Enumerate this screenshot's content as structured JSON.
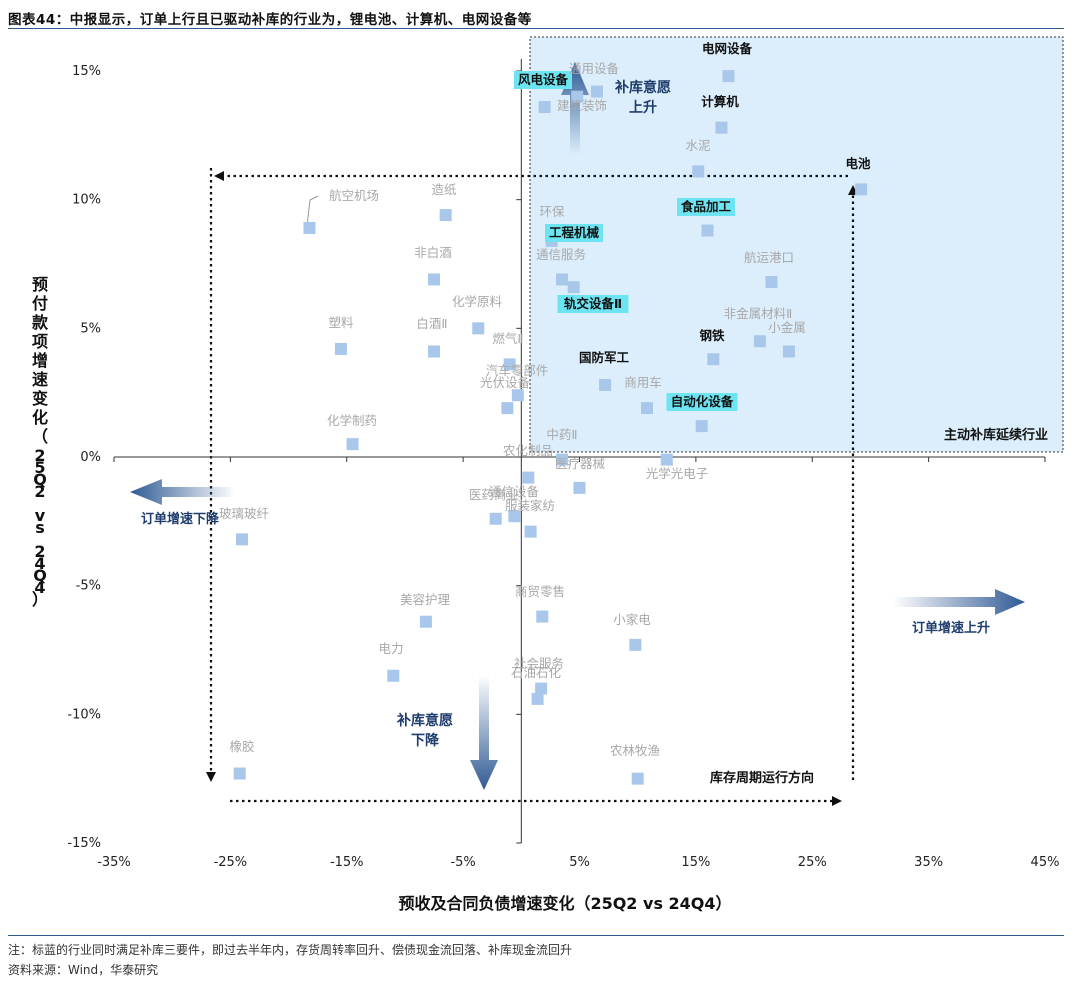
{
  "title": "图表44：中报显示，订单上行且已驱动补库的行业为，锂电池、计算机、电网设备等",
  "note": "注：标蓝的行业同时满足补库三要件，即过去半年内，存货周转率回升、偿债现金流回落、补库现金流回升",
  "source": "资料来源：Wind，华泰研究",
  "chart_data": {
    "type": "scatter",
    "xlabel": "预收及合同负债增速变化（25Q2 vs 24Q4）",
    "ylabel": "预付款项增速变化（25Q2 vs 24Q4）",
    "xlim": [
      -35,
      45
    ],
    "ylim": [
      -15,
      15
    ],
    "xticks": [
      -35,
      -25,
      -15,
      -5,
      5,
      15,
      25,
      35,
      45
    ],
    "yticks": [
      -15,
      -10,
      -5,
      0,
      5,
      10,
      15
    ],
    "xtick_labels": [
      "-35%",
      "-25%",
      "-15%",
      "-5%",
      "5%",
      "15%",
      "25%",
      "35%",
      "45%"
    ],
    "ytick_labels": [
      "-15%",
      "-10%",
      "-5%",
      "0%",
      "5%",
      "10%",
      "15%"
    ],
    "marker_color": "#a9c7ea",
    "highlight_color": "#6de4f2",
    "region_color": "#dceefb",
    "region_label": "主动补库延续行业",
    "annotations": {
      "restock_up": "补库意愿\n上升",
      "restock_down": "补库意愿\n下降",
      "order_down": "订单增速下降",
      "order_up": "订单增速上升",
      "cycle": "库存周期运行方向"
    },
    "points": [
      {
        "label": "电网设备",
        "x": 17.8,
        "y": 14.8,
        "style": "bold"
      },
      {
        "label": "计算机",
        "x": 17.2,
        "y": 12.8,
        "style": "bold"
      },
      {
        "label": "电池",
        "x": 29.2,
        "y": 10.4,
        "style": "bold"
      },
      {
        "label": "食品加工",
        "x": 16.0,
        "y": 8.8,
        "style": "highlight"
      },
      {
        "label": "工程机械",
        "x": 2.8,
        "y": 8.6,
        "style": "highlight"
      },
      {
        "label": "轨交设备Ⅱ",
        "x": 4.5,
        "y": 6.6,
        "style": "highlight"
      },
      {
        "label": "风电设备",
        "x": 4.8,
        "y": 14.0,
        "style": "highlight"
      },
      {
        "label": "自动化设备",
        "x": 15.5,
        "y": 1.2,
        "style": "highlight"
      },
      {
        "label": "钢铁",
        "x": 16.5,
        "y": 3.8,
        "style": "bold"
      },
      {
        "label": "国防军工",
        "x": 7.2,
        "y": 2.8,
        "style": "bold"
      },
      {
        "label": "通用设备",
        "x": 6.5,
        "y": 14.2,
        "style": "gray"
      },
      {
        "label": "建筑装饰",
        "x": 2.0,
        "y": 13.6,
        "style": "gray"
      },
      {
        "label": "水泥",
        "x": 15.2,
        "y": 11.1,
        "style": "gray"
      },
      {
        "label": "航运港口",
        "x": 21.5,
        "y": 6.8,
        "style": "gray"
      },
      {
        "label": "非金属材料Ⅱ",
        "x": 20.5,
        "y": 4.5,
        "style": "gray"
      },
      {
        "label": "小金属",
        "x": 23.0,
        "y": 4.1,
        "style": "gray"
      },
      {
        "label": "商用车",
        "x": 10.8,
        "y": 1.9,
        "style": "gray"
      },
      {
        "label": "通信服务",
        "x": 3.5,
        "y": 6.9,
        "style": "gray"
      },
      {
        "label": "环保",
        "x": 2.6,
        "y": 8.4,
        "style": "gray"
      },
      {
        "label": "中药Ⅱ",
        "x": 3.5,
        "y": -0.1,
        "style": "gray"
      },
      {
        "label": "光学光电子",
        "x": 12.5,
        "y": -0.1,
        "style": "gray"
      },
      {
        "label": "医疗器械",
        "x": 5.0,
        "y": -1.2,
        "style": "gray"
      },
      {
        "label": "航空机场",
        "x": -18.2,
        "y": 8.9,
        "style": "gray"
      },
      {
        "label": "造纸",
        "x": -6.5,
        "y": 9.4,
        "style": "gray"
      },
      {
        "label": "非白酒",
        "x": -7.5,
        "y": 6.9,
        "style": "gray"
      },
      {
        "label": "化学原料",
        "x": -3.7,
        "y": 5.0,
        "style": "gray"
      },
      {
        "label": "塑料",
        "x": -15.5,
        "y": 4.2,
        "style": "gray"
      },
      {
        "label": "白酒Ⅱ",
        "x": -7.5,
        "y": 4.1,
        "style": "gray"
      },
      {
        "label": "燃气Ⅱ",
        "x": -1.0,
        "y": 3.6,
        "style": "gray"
      },
      {
        "label": "汽车零部件",
        "x": -0.3,
        "y": 2.4,
        "style": "gray"
      },
      {
        "label": "光伏设备",
        "x": -1.2,
        "y": 1.9,
        "style": "gray"
      },
      {
        "label": "化学制药",
        "x": -14.5,
        "y": 0.5,
        "style": "gray"
      },
      {
        "label": "农化制品",
        "x": 0.6,
        "y": -0.8,
        "style": "gray"
      },
      {
        "label": "通信设备",
        "x": -0.6,
        "y": -2.3,
        "style": "gray"
      },
      {
        "label": "医药商业",
        "x": -2.2,
        "y": -2.4,
        "style": "gray"
      },
      {
        "label": "服装家纺",
        "x": 0.8,
        "y": -2.9,
        "style": "gray"
      },
      {
        "label": "玻璃玻纤",
        "x": -24.0,
        "y": -3.2,
        "style": "gray"
      },
      {
        "label": "美容护理",
        "x": -8.2,
        "y": -6.4,
        "style": "gray"
      },
      {
        "label": "商贸零售",
        "x": 1.8,
        "y": -6.2,
        "style": "gray"
      },
      {
        "label": "小家电",
        "x": 9.8,
        "y": -7.3,
        "style": "gray"
      },
      {
        "label": "电力",
        "x": -11.0,
        "y": -8.5,
        "style": "gray"
      },
      {
        "label": "社会服务",
        "x": 1.7,
        "y": -9.0,
        "style": "gray"
      },
      {
        "label": "石油石化",
        "x": 1.4,
        "y": -9.4,
        "style": "gray"
      },
      {
        "label": "橡胶",
        "x": -24.2,
        "y": -12.3,
        "style": "gray"
      },
      {
        "label": "农林牧渔",
        "x": 10.0,
        "y": -12.5,
        "style": "gray"
      }
    ]
  }
}
